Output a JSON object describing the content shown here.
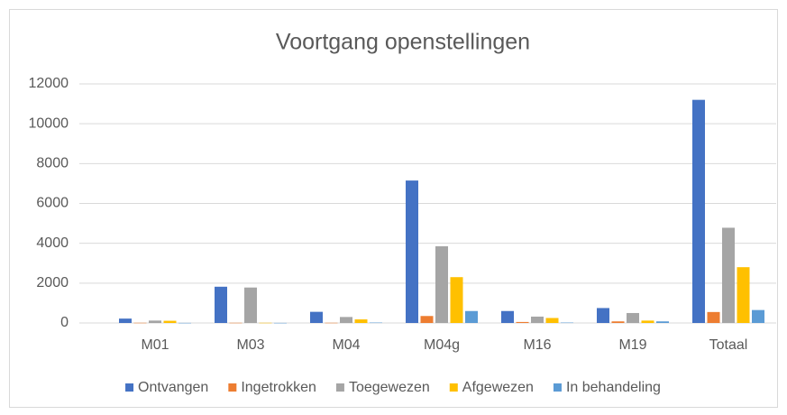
{
  "chart_data": {
    "type": "bar",
    "title": "Voortgang openstellingen",
    "categories": [
      "M01",
      "M03",
      "M04",
      "M04g",
      "M16",
      "M19",
      "Totaal"
    ],
    "series": [
      {
        "name": "Ontvangen",
        "color": "#4472c4",
        "values": [
          220,
          1820,
          560,
          7150,
          600,
          750,
          11200
        ]
      },
      {
        "name": "Ingetrokken",
        "color": "#ed7d31",
        "values": [
          10,
          10,
          10,
          350,
          50,
          80,
          550
        ]
      },
      {
        "name": "Toegewezen",
        "color": "#a5a5a5",
        "values": [
          120,
          1780,
          300,
          3850,
          320,
          500,
          4780
        ]
      },
      {
        "name": "Afgewezen",
        "color": "#ffc000",
        "values": [
          110,
          10,
          180,
          2300,
          250,
          120,
          2800
        ]
      },
      {
        "name": "In behandeling",
        "color": "#5b9bd5",
        "values": [
          5,
          5,
          20,
          600,
          20,
          80,
          650
        ]
      }
    ],
    "ylim": [
      0,
      12000
    ],
    "yticks": [
      0,
      2000,
      4000,
      6000,
      8000,
      10000,
      12000
    ],
    "grid": true,
    "legend": "bottom"
  }
}
